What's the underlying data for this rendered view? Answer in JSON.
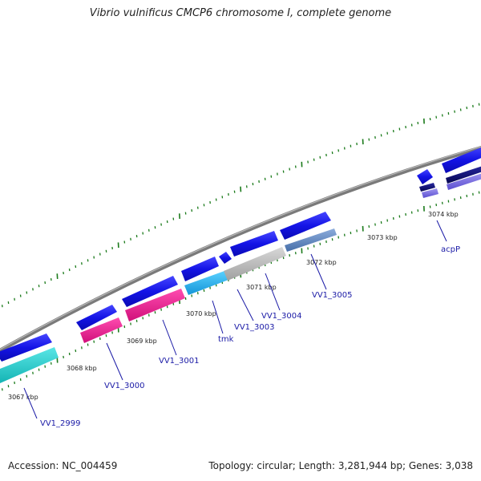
{
  "title": "Vibrio vulnificus CMCP6 chromosome I, complete genome",
  "footer": {
    "accession": "Accession: NC_004459",
    "stats": "Topology: circular; Length: 3,281,944 bp; Genes: 3,038"
  },
  "colors": {
    "backbone": "#8c8c8c",
    "cds": "#1414e6",
    "tick": "#1a7a1a",
    "label": "#1a1aa6",
    "cyan": "#1fc8c8",
    "magenta": "#e6198c",
    "sky": "#19b4ea",
    "gray_feature": "#b4b4b4",
    "steel": "#5a82be",
    "navy": "#0a0a78",
    "lavender": "#7a6ee6"
  },
  "scale_labels": [
    "3067 kbp",
    "3068 kbp",
    "3069 kbp",
    "3070 kbp",
    "3071 kbp",
    "3072 kbp",
    "3073 kbp",
    "3074 kbp"
  ],
  "gene_labels": [
    "VV1_2999",
    "VV1_3000",
    "VV1_3001",
    "tmk",
    "VV1_3003",
    "VV1_3004",
    "VV1_3005",
    "acpP"
  ]
}
